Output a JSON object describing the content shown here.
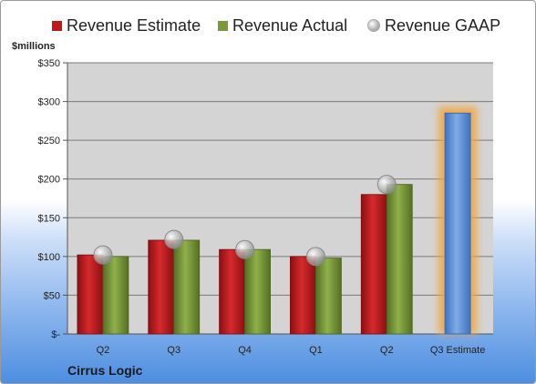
{
  "chart_data": {
    "type": "bar",
    "ylabel": "$millions",
    "ylim": [
      0,
      350
    ],
    "yticks": [
      {
        "value": 0,
        "label": "$-"
      },
      {
        "value": 50,
        "label": "$50"
      },
      {
        "value": 100,
        "label": "$100"
      },
      {
        "value": 150,
        "label": "$150"
      },
      {
        "value": 200,
        "label": "$200"
      },
      {
        "value": 250,
        "label": "$250"
      },
      {
        "value": 300,
        "label": "$300"
      },
      {
        "value": 350,
        "label": "$350"
      }
    ],
    "categories": [
      "Q2",
      "Q3",
      "Q4",
      "Q1",
      "Q2",
      "Q3 Estimate"
    ],
    "series": [
      {
        "name": "Revenue Estimate",
        "type": "bar",
        "color": "#c0191c",
        "values": [
          102,
          121,
          109,
          100,
          180,
          285
        ]
      },
      {
        "name": "Revenue Actual",
        "type": "bar",
        "color": "#7a9a3a",
        "values": [
          100,
          121,
          109,
          98,
          193,
          null
        ]
      },
      {
        "name": "Revenue GAAP",
        "type": "marker",
        "color": "#b8b8b8",
        "values": [
          102,
          122,
          109,
          100,
          193,
          null
        ]
      }
    ],
    "highlight": {
      "category_index": 5,
      "bar_color": "#5b8ed6",
      "glow_color": "#f4a43a"
    },
    "grid": true,
    "legend_position": "top",
    "plot_background": "#d4d4d4"
  },
  "footer": {
    "company": "Cirrus Logic"
  }
}
